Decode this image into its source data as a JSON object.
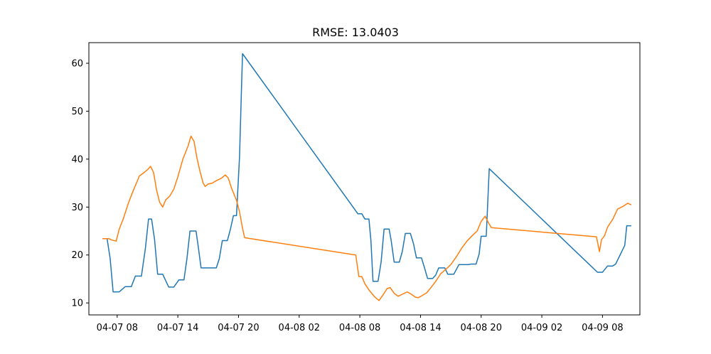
{
  "chart_data": {
    "type": "line",
    "title": "RMSE: 13.0403",
    "xlabel": "",
    "ylabel": "",
    "x_tick_labels": [
      "04-07 08",
      "04-07 14",
      "04-07 20",
      "04-08 02",
      "04-08 08",
      "04-08 14",
      "04-08 20",
      "04-09 02",
      "04-09 08"
    ],
    "x_ticks_hours": [
      8,
      14,
      20,
      26,
      32,
      38,
      44,
      50,
      56
    ],
    "xlim_hours": [
      5.2,
      59.7
    ],
    "y_ticks": [
      10,
      20,
      30,
      40,
      50,
      60
    ],
    "ylim": [
      7.5,
      64.3
    ],
    "grid": false,
    "series": [
      {
        "color": "#1f77b4",
        "points": [
          [
            6.6,
            23.4
          ],
          [
            7.0,
            23.4
          ],
          [
            7.3,
            19.3
          ],
          [
            7.6,
            12.3
          ],
          [
            8.2,
            12.3
          ],
          [
            8.8,
            13.4
          ],
          [
            9.4,
            13.4
          ],
          [
            9.8,
            15.6
          ],
          [
            10.4,
            15.6
          ],
          [
            10.8,
            21.5
          ],
          [
            11.1,
            27.5
          ],
          [
            11.4,
            27.5
          ],
          [
            11.7,
            23.2
          ],
          [
            12.0,
            16.0
          ],
          [
            12.5,
            16.0
          ],
          [
            13.1,
            13.3
          ],
          [
            13.6,
            13.3
          ],
          [
            14.1,
            14.8
          ],
          [
            14.6,
            14.8
          ],
          [
            14.9,
            19.2
          ],
          [
            15.2,
            25.0
          ],
          [
            15.8,
            25.0
          ],
          [
            16.0,
            22.0
          ],
          [
            16.3,
            17.3
          ],
          [
            17.0,
            17.3
          ],
          [
            17.8,
            17.3
          ],
          [
            18.1,
            19.2
          ],
          [
            18.4,
            23.0
          ],
          [
            18.9,
            23.0
          ],
          [
            19.2,
            25.4
          ],
          [
            19.5,
            28.2
          ],
          [
            19.8,
            28.2
          ],
          [
            20.1,
            40.5
          ],
          [
            20.3,
            55.0
          ],
          [
            20.4,
            62.0
          ],
          [
            31.8,
            28.6
          ],
          [
            32.2,
            28.6
          ],
          [
            32.5,
            27.5
          ],
          [
            32.9,
            27.5
          ],
          [
            33.1,
            23.0
          ],
          [
            33.3,
            14.5
          ],
          [
            33.8,
            14.5
          ],
          [
            34.1,
            18.5
          ],
          [
            34.4,
            25.4
          ],
          [
            34.9,
            25.4
          ],
          [
            35.1,
            23.0
          ],
          [
            35.4,
            18.5
          ],
          [
            35.9,
            18.5
          ],
          [
            36.2,
            20.7
          ],
          [
            36.5,
            24.5
          ],
          [
            37.0,
            24.5
          ],
          [
            37.3,
            22.4
          ],
          [
            37.6,
            19.4
          ],
          [
            38.1,
            19.4
          ],
          [
            38.4,
            17.3
          ],
          [
            38.7,
            15.1
          ],
          [
            39.2,
            15.1
          ],
          [
            39.5,
            15.8
          ],
          [
            39.8,
            17.3
          ],
          [
            40.4,
            17.3
          ],
          [
            40.7,
            16.0
          ],
          [
            41.3,
            16.0
          ],
          [
            41.8,
            18.0
          ],
          [
            42.7,
            18.0
          ],
          [
            43.0,
            18.1
          ],
          [
            43.5,
            18.1
          ],
          [
            43.8,
            20.2
          ],
          [
            44.0,
            23.9
          ],
          [
            44.5,
            23.9
          ],
          [
            44.8,
            38.0
          ],
          [
            55.5,
            16.4
          ],
          [
            56.0,
            16.4
          ],
          [
            56.5,
            17.7
          ],
          [
            57.0,
            17.7
          ],
          [
            57.3,
            18.1
          ],
          [
            58.2,
            22.0
          ],
          [
            58.4,
            26.1
          ],
          [
            58.8,
            26.1
          ]
        ]
      },
      {
        "color": "#ff7f0e",
        "points": [
          [
            6.6,
            23.4
          ],
          [
            7.2,
            23.4
          ],
          [
            7.5,
            23.1
          ],
          [
            7.9,
            22.9
          ],
          [
            8.2,
            25.4
          ],
          [
            8.6,
            27.5
          ],
          [
            9.1,
            30.8
          ],
          [
            9.6,
            33.5
          ],
          [
            10.2,
            36.5
          ],
          [
            10.6,
            37.1
          ],
          [
            11.0,
            37.8
          ],
          [
            11.3,
            38.5
          ],
          [
            11.6,
            37.2
          ],
          [
            11.9,
            33.5
          ],
          [
            12.2,
            31.0
          ],
          [
            12.5,
            30.0
          ],
          [
            12.8,
            31.5
          ],
          [
            13.2,
            32.3
          ],
          [
            13.6,
            33.7
          ],
          [
            14.0,
            36.3
          ],
          [
            14.5,
            40.0
          ],
          [
            15.0,
            42.7
          ],
          [
            15.3,
            44.8
          ],
          [
            15.6,
            43.7
          ],
          [
            15.9,
            40.1
          ],
          [
            16.2,
            37.4
          ],
          [
            16.5,
            35.0
          ],
          [
            16.7,
            34.3
          ],
          [
            17.0,
            34.8
          ],
          [
            17.4,
            35.0
          ],
          [
            17.8,
            35.5
          ],
          [
            18.3,
            36.0
          ],
          [
            18.7,
            36.7
          ],
          [
            19.0,
            36.0
          ],
          [
            19.3,
            34.0
          ],
          [
            19.8,
            31.4
          ],
          [
            20.1,
            29.0
          ],
          [
            20.4,
            25.6
          ],
          [
            20.6,
            23.6
          ],
          [
            31.6,
            20.0
          ],
          [
            31.9,
            15.5
          ],
          [
            32.2,
            15.5
          ],
          [
            32.5,
            14.0
          ],
          [
            32.9,
            12.7
          ],
          [
            33.5,
            11.2
          ],
          [
            33.9,
            10.5
          ],
          [
            34.3,
            11.7
          ],
          [
            34.7,
            13.0
          ],
          [
            35.0,
            13.2
          ],
          [
            35.4,
            12.0
          ],
          [
            35.8,
            11.4
          ],
          [
            36.2,
            11.8
          ],
          [
            36.7,
            12.3
          ],
          [
            37.1,
            11.8
          ],
          [
            37.5,
            11.2
          ],
          [
            37.8,
            11.1
          ],
          [
            38.2,
            11.6
          ],
          [
            38.6,
            12.1
          ],
          [
            39.0,
            13.1
          ],
          [
            39.5,
            14.5
          ],
          [
            40.0,
            16.1
          ],
          [
            40.5,
            17.0
          ],
          [
            41.0,
            18.0
          ],
          [
            41.6,
            19.8
          ],
          [
            42.1,
            21.5
          ],
          [
            42.6,
            22.9
          ],
          [
            43.1,
            24.0
          ],
          [
            43.6,
            25.0
          ],
          [
            44.0,
            27.0
          ],
          [
            44.4,
            28.1
          ],
          [
            44.7,
            26.8
          ],
          [
            45.0,
            25.7
          ],
          [
            55.4,
            23.8
          ],
          [
            55.7,
            20.7
          ],
          [
            55.9,
            23.2
          ],
          [
            56.2,
            24.0
          ],
          [
            56.5,
            25.8
          ],
          [
            57.0,
            27.4
          ],
          [
            57.5,
            29.6
          ],
          [
            58.0,
            30.1
          ],
          [
            58.5,
            30.8
          ],
          [
            58.8,
            30.5
          ]
        ]
      }
    ]
  }
}
